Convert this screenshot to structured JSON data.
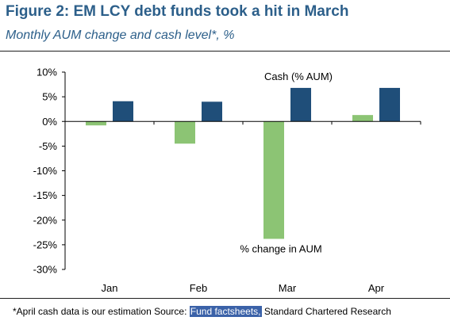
{
  "header": {
    "title": "Figure 2: EM LCY debt funds took a hit in March",
    "subtitle": "Monthly AUM change and cash level*, %"
  },
  "footnote": {
    "lead": "*April cash data is our estimation Source: ",
    "highlight": "Fund factsheets,",
    "tail": " Standard Chartered Research"
  },
  "colors": {
    "aum_change": "#8cc474",
    "cash": "#1f4e79",
    "highlight": "#3b62a8",
    "title": "#2c5f8a"
  },
  "chart_data": {
    "type": "bar",
    "categories": [
      "Jan",
      "Feb",
      "Mar",
      "Apr"
    ],
    "series": [
      {
        "name": "% change in AUM",
        "values": [
          -0.8,
          -4.5,
          -23.8,
          1.3
        ]
      },
      {
        "name": "Cash (% AUM)",
        "values": [
          4.1,
          4.0,
          6.8,
          6.8
        ]
      }
    ],
    "ylim": [
      -30,
      10
    ],
    "yticks": [
      "10%",
      "5%",
      "0%",
      "-5%",
      "-10%",
      "-15%",
      "-20%",
      "-25%",
      "-30%"
    ],
    "ytick_values": [
      10,
      5,
      0,
      -5,
      -10,
      -15,
      -20,
      -25,
      -30
    ],
    "grid": false
  }
}
